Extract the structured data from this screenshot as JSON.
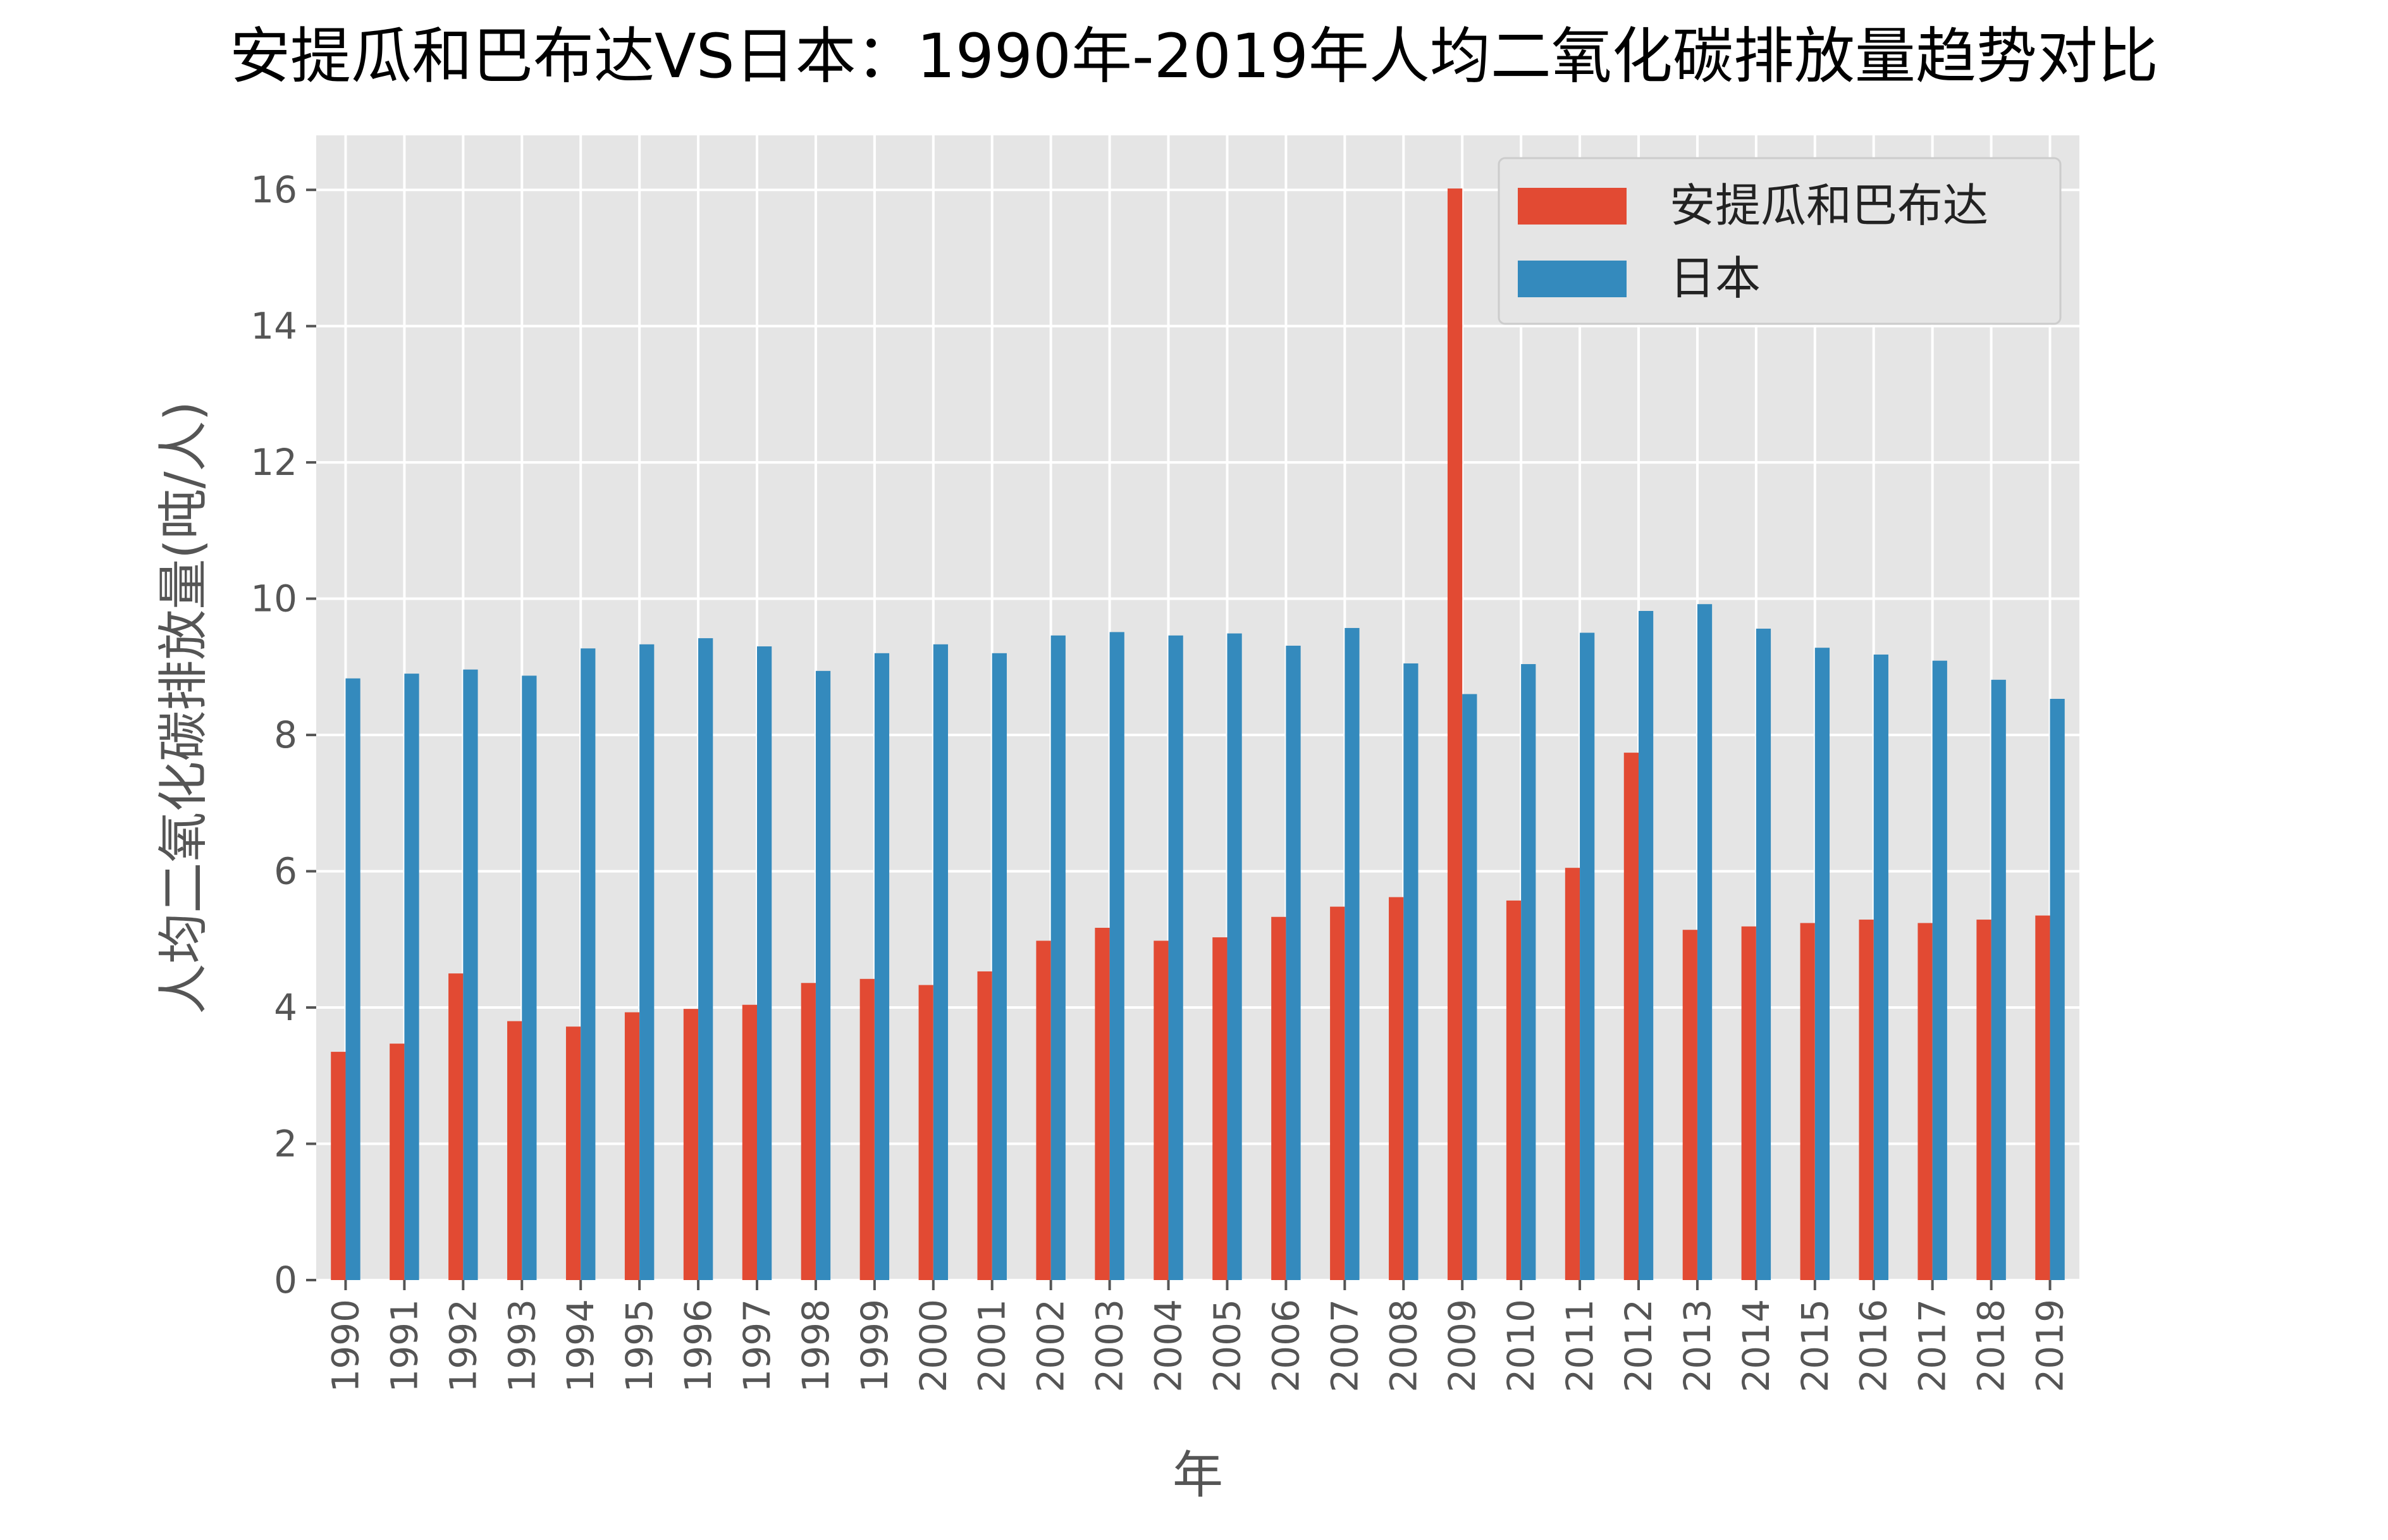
{
  "chart_data": {
    "type": "bar",
    "title": "安提瓜和巴布达VS日本：1990年-2019年人均二氧化碳排放量趋势对比",
    "xlabel": "年",
    "ylabel": "人均二氧化碳排放量(吨/人)",
    "ylim": [
      0,
      16.8
    ],
    "yticks": [
      0,
      2,
      4,
      6,
      8,
      10,
      12,
      14,
      16
    ],
    "grid": true,
    "legend_position": "top-right",
    "categories": [
      "1990",
      "1991",
      "1992",
      "1993",
      "1994",
      "1995",
      "1996",
      "1997",
      "1998",
      "1999",
      "2000",
      "2001",
      "2002",
      "2003",
      "2004",
      "2005",
      "2006",
      "2007",
      "2008",
      "2009",
      "2010",
      "2011",
      "2012",
      "2013",
      "2014",
      "2015",
      "2016",
      "2017",
      "2018",
      "2019"
    ],
    "series": [
      {
        "name": "安提瓜和巴布达",
        "color": "#E24A33",
        "values": [
          3.35,
          3.47,
          4.5,
          3.8,
          3.72,
          3.93,
          3.98,
          4.04,
          4.36,
          4.42,
          4.33,
          4.53,
          4.98,
          5.17,
          4.98,
          5.03,
          5.33,
          5.48,
          5.62,
          16.02,
          5.57,
          6.05,
          7.74,
          5.14,
          5.19,
          5.24,
          5.29,
          5.24,
          5.29,
          5.35
        ]
      },
      {
        "name": "日本",
        "color": "#348ABD",
        "values": [
          8.83,
          8.9,
          8.96,
          8.87,
          9.27,
          9.33,
          9.42,
          9.3,
          8.94,
          9.2,
          9.33,
          9.2,
          9.46,
          9.51,
          9.46,
          9.49,
          9.31,
          9.57,
          9.05,
          8.6,
          9.04,
          9.5,
          9.82,
          9.92,
          9.56,
          9.28,
          9.18,
          9.09,
          8.81,
          8.53
        ]
      }
    ]
  },
  "style": {
    "plot_background": "#E5E5E5",
    "grid_color": "#FFFFFF",
    "text_color": "#555555",
    "title_color": "#000000"
  }
}
